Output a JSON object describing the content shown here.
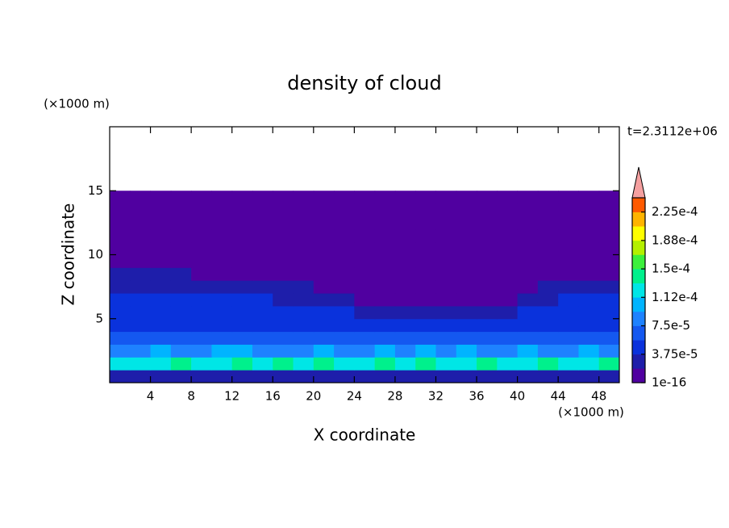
{
  "chart_data": {
    "type": "contour",
    "title": "density of cloud",
    "x_label": "X coordinate",
    "y_label": "Z coordinate",
    "x_unit": "(×1000 m)",
    "y_unit": "(×1000 m)",
    "annotation": "t=2.3112e+06",
    "xlim": [
      0,
      50
    ],
    "ylim": [
      0,
      20
    ],
    "xticks": [
      4,
      8,
      12,
      16,
      20,
      24,
      28,
      32,
      36,
      40,
      44,
      48
    ],
    "yticks": [
      5,
      10,
      15
    ],
    "x": [
      1,
      3,
      5,
      7,
      9,
      11,
      13,
      15,
      17,
      19,
      21,
      23,
      25,
      27,
      29,
      31,
      33,
      35,
      37,
      39,
      41,
      43,
      45,
      47,
      49
    ],
    "z": [
      0.5,
      1.5,
      2.5,
      3.5,
      4.5,
      5.5,
      6.5,
      7.5,
      8.5,
      9.5,
      10.5,
      11.5,
      12.5,
      13.5,
      14.5
    ],
    "values": [
      [
        3.2e-05,
        2.6e-05,
        3.4e-05,
        2.9e-05,
        3.1e-05,
        2.4e-05,
        3.3e-05,
        3e-05,
        2.7e-05,
        3.5e-05,
        2.9e-05,
        3.2e-05,
        2.5e-05,
        3.1e-05,
        3.3e-05,
        2.8e-05,
        3e-05,
        2.6e-05,
        3.4e-05,
        2.9e-05,
        3.1e-05,
        2.7e-05,
        3.2e-05,
        3e-05,
        2.8e-05
      ],
      [
        0.000118,
        0.00013,
        0.000122,
        0.000135,
        0.000115,
        0.000128,
        0.00014,
        0.00012,
        0.000132,
        0.000125,
        0.000138,
        0.000117,
        0.00013,
        0.000142,
        0.000121,
        0.000133,
        0.000126,
        0.000119,
        0.000136,
        0.000124,
        0.000131,
        0.000145,
        0.000122,
        0.000129,
        0.000134
      ],
      [
        9.2e-05,
        8.6e-05,
        9.8e-05,
        9e-05,
        8.4e-05,
        9.5e-05,
        0.0001,
        8.8e-05,
        9.3e-05,
        8.5e-05,
        9.7e-05,
        9.1e-05,
        8.7e-05,
        9.4e-05,
        8.9e-05,
        9.9e-05,
        8.3e-05,
        9.6e-05,
        9e-05,
        8.6e-05,
        9.5e-05,
        9.2e-05,
        8.8e-05,
        9.7e-05,
        9.1e-05
      ],
      [
        6.6e-05,
        7e-05,
        6.2e-05,
        6.8e-05,
        7.2e-05,
        6.4e-05,
        6.9e-05,
        6.1e-05,
        7.1e-05,
        6.5e-05,
        6.7e-05,
        7.3e-05,
        6.3e-05,
        6.8e-05,
        6e-05,
        7e-05,
        6.6e-05,
        6.2e-05,
        6.9e-05,
        7.2e-05,
        6.4e-05,
        6.7e-05,
        7.1e-05,
        6.3e-05,
        6.8e-05
      ],
      [
        5.2e-05,
        4.8e-05,
        5.5e-05,
        5e-05,
        4.6e-05,
        5.3e-05,
        4.9e-05,
        5.6e-05,
        4.7e-05,
        5.1e-05,
        5.4e-05,
        4.5e-05,
        5e-05,
        4.4e-05,
        4.2e-05,
        4e-05,
        4.3e-05,
        4.1e-05,
        4.5e-05,
        4.2e-05,
        4.8e-05,
        5.1e-05,
        4.7e-05,
        5.3e-05,
        4.9e-05
      ],
      [
        4.3e-05,
        4e-05,
        4.5e-05,
        4.1e-05,
        4.4e-05,
        3.9e-05,
        4.2e-05,
        4e-05,
        4.3e-05,
        3.9e-05,
        4.1e-05,
        3.8e-05,
        2.6e-05,
        2.4e-05,
        2.2e-05,
        2.5e-05,
        2.3e-05,
        2.6e-05,
        2.8e-05,
        3.6e-05,
        4e-05,
        4.2e-05,
        3.9e-05,
        4.4e-05,
        4.1e-05
      ],
      [
        4.1e-05,
        3.9e-05,
        4e-05,
        3.8e-05,
        4e-05,
        3.9e-05,
        4.1e-05,
        3.8e-05,
        3.2e-05,
        3e-05,
        2.9e-05,
        2.2e-05,
        5e-06,
        4e-06,
        5e-06,
        3e-06,
        4e-06,
        5e-06,
        6e-06,
        1.2e-05,
        2.4e-05,
        2.8e-05,
        3.9e-05,
        4e-05,
        4.1e-05
      ],
      [
        3.3e-05,
        3.1e-05,
        3e-05,
        3.2e-05,
        2.9e-05,
        2.3e-05,
        2.1e-05,
        2.5e-05,
        2.2e-05,
        2e-05,
        1.6e-05,
        3e-06,
        2e-06,
        2e-06,
        2e-06,
        2e-06,
        2e-06,
        2e-06,
        2e-06,
        3e-06,
        1e-05,
        2.2e-05,
        2.6e-05,
        2.8e-05,
        3e-05
      ],
      [
        2e-05,
        2.2e-05,
        1.9e-05,
        2.1e-05,
        1e-05,
        1e-06,
        1e-06,
        1e-06,
        1e-06,
        1e-06,
        1e-06,
        1e-06,
        1e-06,
        1e-06,
        1e-06,
        1e-06,
        1e-06,
        1e-06,
        1e-06,
        1e-06,
        1e-06,
        1e-06,
        1e-06,
        1e-06,
        1e-06
      ],
      [
        1e-06,
        1e-06,
        1e-06,
        1e-06,
        1e-06,
        1e-06,
        1e-06,
        1e-06,
        1e-06,
        1e-06,
        1e-06,
        1e-06,
        1e-06,
        1e-06,
        1e-06,
        1e-06,
        1e-06,
        1e-06,
        1e-06,
        1e-06,
        1e-06,
        1e-06,
        1e-06,
        1e-06,
        1e-06
      ],
      [
        1e-06,
        1e-06,
        1e-06,
        1e-06,
        1e-06,
        1e-06,
        1e-06,
        1e-06,
        1e-06,
        1e-06,
        1e-06,
        1e-06,
        1e-06,
        1e-06,
        1e-06,
        1e-06,
        1e-06,
        1e-06,
        1e-06,
        1e-06,
        1e-06,
        1e-06,
        1e-06,
        1e-06,
        1e-06
      ],
      [
        1e-06,
        1e-06,
        1e-06,
        1e-06,
        1e-06,
        1e-06,
        1e-06,
        1e-06,
        1e-06,
        1e-06,
        1e-06,
        1e-06,
        1e-06,
        1e-06,
        1e-06,
        1e-06,
        1e-06,
        1e-06,
        1e-06,
        1e-06,
        1e-06,
        1e-06,
        1e-06,
        1e-06,
        1e-06
      ],
      [
        1e-06,
        1e-06,
        1e-06,
        1e-06,
        1e-06,
        1e-06,
        1e-06,
        1e-06,
        1e-06,
        1e-06,
        1e-06,
        1e-06,
        1e-06,
        1e-06,
        1e-06,
        1e-06,
        1e-06,
        1e-06,
        1e-06,
        1e-06,
        1e-06,
        1e-06,
        1e-06,
        1e-06,
        1e-06
      ],
      [
        1e-06,
        1e-06,
        1e-06,
        1e-06,
        1e-06,
        1e-06,
        1e-06,
        1e-06,
        1e-06,
        1e-06,
        1e-06,
        1e-06,
        1e-06,
        1e-06,
        1e-06,
        1e-06,
        1e-06,
        1e-06,
        1e-06,
        1e-06,
        1e-06,
        1e-06,
        1e-06,
        1e-06,
        1e-06
      ],
      [
        1e-06,
        1e-06,
        1e-06,
        1e-06,
        1e-06,
        1e-06,
        1e-06,
        1e-06,
        1e-06,
        1e-06,
        1e-06,
        1e-06,
        1e-06,
        1e-06,
        1e-06,
        1e-06,
        1e-06,
        1e-06,
        1e-06,
        1e-06,
        1e-06,
        1e-06,
        1e-06,
        1e-06,
        1e-06
      ]
    ],
    "levels": [
      1e-16,
      1.875e-05,
      3.75e-05,
      5.625e-05,
      7.5e-05,
      9.375e-05,
      0.0001125,
      0.00013125,
      0.00015,
      0.00016875,
      0.0001875,
      0.00020625,
      0.000225,
      0.00024375
    ],
    "colors": [
      "#5000a0",
      "#1e1eaa",
      "#0a32dc",
      "#1458f0",
      "#1e82ff",
      "#00b4ff",
      "#00e6e6",
      "#00f08c",
      "#3cf03c",
      "#b4f000",
      "#ffff00",
      "#ffb400",
      "#ff5a00"
    ],
    "over_color": "#f5a0a0",
    "colorbar_ticks": [
      1e-16,
      {
        "value": 3.75e-05,
        "label": "3.75e-5"
      },
      {
        "value": 7.5e-05,
        "label": "7.5e-5"
      },
      {
        "value": 0.0001125,
        "label": "1.12e-4"
      },
      {
        "value": 0.00015,
        "label": "1.5e-4"
      },
      {
        "value": 0.0001875,
        "label": "1.88e-4"
      },
      {
        "value": 0.000225,
        "label": "2.25e-4"
      }
    ]
  }
}
